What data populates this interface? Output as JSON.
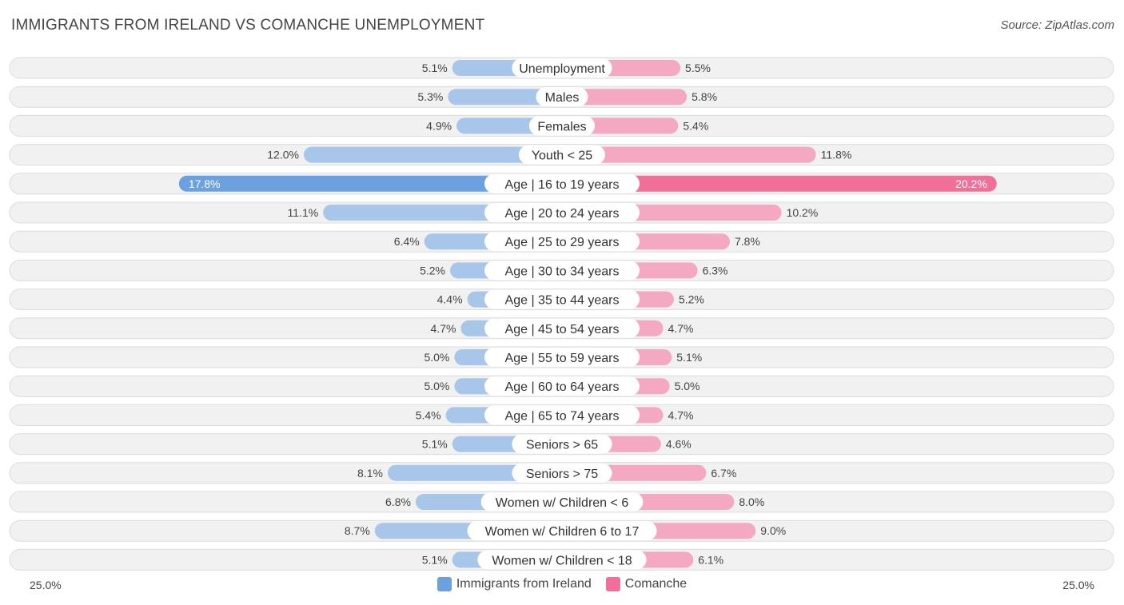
{
  "title": "IMMIGRANTS FROM IRELAND VS COMANCHE UNEMPLOYMENT",
  "source": "Source: ZipAtlas.com",
  "colors": {
    "left": "#a7c6ea",
    "left_strong": "#6aa1de",
    "right": "#f5a8c1",
    "right_strong": "#f07099"
  },
  "legend": {
    "left_label": "Immigrants from Ireland",
    "right_label": "Comanche"
  },
  "axis": {
    "left_label": "25.0%",
    "right_label": "25.0%"
  },
  "chart_data": {
    "type": "bar",
    "orientation": "horizontal-diverging",
    "title": "IMMIGRANTS FROM IRELAND VS COMANCHE UNEMPLOYMENT",
    "xlim": [
      0,
      25
    ],
    "categories": [
      "Unemployment",
      "Males",
      "Females",
      "Youth < 25",
      "Age | 16 to 19 years",
      "Age | 20 to 24 years",
      "Age | 25 to 29 years",
      "Age | 30 to 34 years",
      "Age | 35 to 44 years",
      "Age | 45 to 54 years",
      "Age | 55 to 59 years",
      "Age | 60 to 64 years",
      "Age | 65 to 74 years",
      "Seniors > 65",
      "Seniors > 75",
      "Women w/ Children < 6",
      "Women w/ Children 6 to 17",
      "Women w/ Children < 18"
    ],
    "series": [
      {
        "name": "Immigrants from Ireland",
        "values": [
          5.1,
          5.3,
          4.9,
          12.0,
          17.8,
          11.1,
          6.4,
          5.2,
          4.4,
          4.7,
          5.0,
          5.0,
          5.4,
          5.1,
          8.1,
          6.8,
          8.7,
          5.1
        ],
        "labels": [
          "5.1%",
          "5.3%",
          "4.9%",
          "12.0%",
          "17.8%",
          "11.1%",
          "6.4%",
          "5.2%",
          "4.4%",
          "4.7%",
          "5.0%",
          "5.0%",
          "5.4%",
          "5.1%",
          "8.1%",
          "6.8%",
          "8.7%",
          "5.1%"
        ]
      },
      {
        "name": "Comanche",
        "values": [
          5.5,
          5.8,
          5.4,
          11.8,
          20.2,
          10.2,
          7.8,
          6.3,
          5.2,
          4.7,
          5.1,
          5.0,
          4.7,
          4.6,
          6.7,
          8.0,
          9.0,
          6.1
        ],
        "labels": [
          "5.5%",
          "5.8%",
          "5.4%",
          "11.8%",
          "20.2%",
          "10.2%",
          "7.8%",
          "6.3%",
          "5.2%",
          "4.7%",
          "5.1%",
          "5.0%",
          "4.7%",
          "4.6%",
          "6.7%",
          "8.0%",
          "9.0%",
          "6.1%"
        ]
      }
    ],
    "highlight_index": 4
  }
}
